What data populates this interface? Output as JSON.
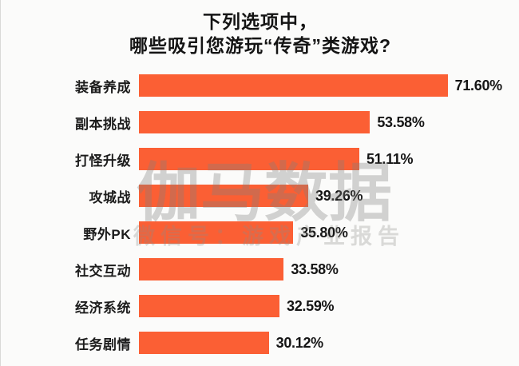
{
  "title": {
    "line1": "下列选项中，",
    "line2": "哪些吸引您游玩“传奇”类游戏?"
  },
  "watermark": {
    "brand": "伽马数据",
    "subtitle": "微信号：游戏产业报告"
  },
  "colors": {
    "bar": "#FB5F34",
    "background": "#FBFBFA",
    "title_text": "#141414",
    "watermark_gray": "#C9C9C7"
  },
  "chart_data": {
    "type": "bar",
    "orientation": "horizontal",
    "title": "下列选项中，哪些吸引您游玩“传奇”类游戏?",
    "xlabel": "",
    "ylabel": "",
    "xlim": [
      0,
      80
    ],
    "grid": false,
    "legend": "none",
    "categories": [
      "装备养成",
      "副本挑战",
      "打怪升级",
      "攻城战",
      "野外PK",
      "社交互动",
      "经济系统",
      "任务剧情"
    ],
    "values": [
      71.6,
      53.58,
      51.11,
      39.26,
      35.8,
      33.58,
      32.59,
      30.12
    ],
    "value_labels": [
      "71.60%",
      "53.58%",
      "51.11%",
      "39.26%",
      "35.80%",
      "33.58%",
      "32.59%",
      "30.12%"
    ]
  }
}
